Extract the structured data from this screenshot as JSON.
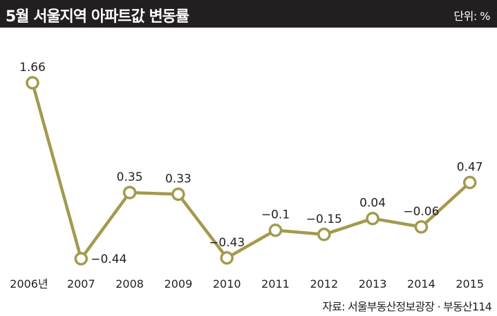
{
  "header": {
    "title": "5월 서울지역 아파트값 변동률",
    "unit": "단위: %"
  },
  "source": "자료: 서울부동산정보광장 · 부동산114",
  "colors": {
    "header_bg": "#231f20",
    "line": "#a39a4e",
    "marker_fill": "#ffffff",
    "text": "#231f20"
  },
  "chart_data": {
    "type": "line",
    "categories": [
      "2006년",
      "2007",
      "2008",
      "2009",
      "2010",
      "2011",
      "2012",
      "2013",
      "2014",
      "2015"
    ],
    "series": [
      {
        "values": [
          1.66,
          -0.44,
          0.35,
          0.33,
          -0.43,
          -0.1,
          -0.15,
          0.04,
          -0.06,
          0.47
        ],
        "labels": [
          "1.66",
          "−0.44",
          "0.35",
          "0.33",
          "−0.43",
          "−0.1",
          "−0.15",
          "0.04",
          "−0.06",
          "0.47"
        ]
      }
    ],
    "title": "5월 서울지역 아파트값 변동률",
    "xlabel": "",
    "ylabel": "",
    "unit": "%",
    "grid": false,
    "legend": "none"
  }
}
